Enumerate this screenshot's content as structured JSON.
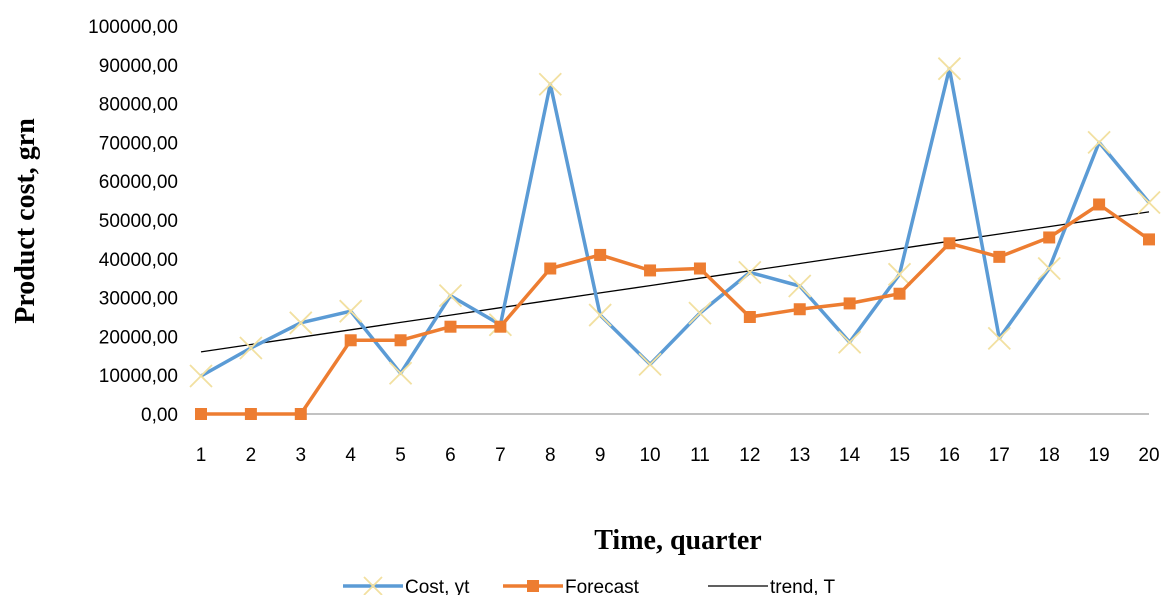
{
  "chart_data": {
    "type": "line",
    "title": "",
    "xlabel": "Time, quarter",
    "ylabel": "Product cost, grn",
    "categories": [
      "1",
      "2",
      "3",
      "4",
      "5",
      "6",
      "7",
      "8",
      "9",
      "10",
      "11",
      "12",
      "13",
      "14",
      "15",
      "16",
      "17",
      "18",
      "19",
      "20"
    ],
    "y_tick_labels": [
      "0,00",
      "10000,00",
      "20000,00",
      "30000,00",
      "40000,00",
      "50000,00",
      "60000,00",
      "70000,00",
      "80000,00",
      "90000,00",
      "100000,00"
    ],
    "ylim": [
      0,
      100000
    ],
    "grid": false,
    "legend_position": "bottom",
    "series": [
      {
        "name": "Cost, yt",
        "color": "#5B9BD5",
        "marker": "x",
        "marker_color": "#F2E0A0",
        "values": [
          9800,
          17000,
          23500,
          26500,
          10500,
          30500,
          23000,
          85000,
          25500,
          12800,
          26000,
          36500,
          33000,
          18500,
          36000,
          89000,
          19500,
          37500,
          70000,
          54500
        ]
      },
      {
        "name": "Forecast",
        "color": "#ED7D31",
        "marker": "square",
        "values": [
          0,
          0,
          0,
          19000,
          19000,
          22500,
          22500,
          37500,
          41000,
          37000,
          37500,
          25000,
          27000,
          28500,
          31000,
          44000,
          40500,
          45500,
          54000,
          45000
        ]
      },
      {
        "name": "trend, T",
        "color": "#000000",
        "marker": "none",
        "values": [
          16000,
          17900,
          19800,
          21700,
          23600,
          25500,
          27400,
          29300,
          31200,
          33100,
          35000,
          36900,
          38800,
          40700,
          42600,
          44500,
          46400,
          48300,
          50200,
          52100
        ]
      }
    ]
  }
}
